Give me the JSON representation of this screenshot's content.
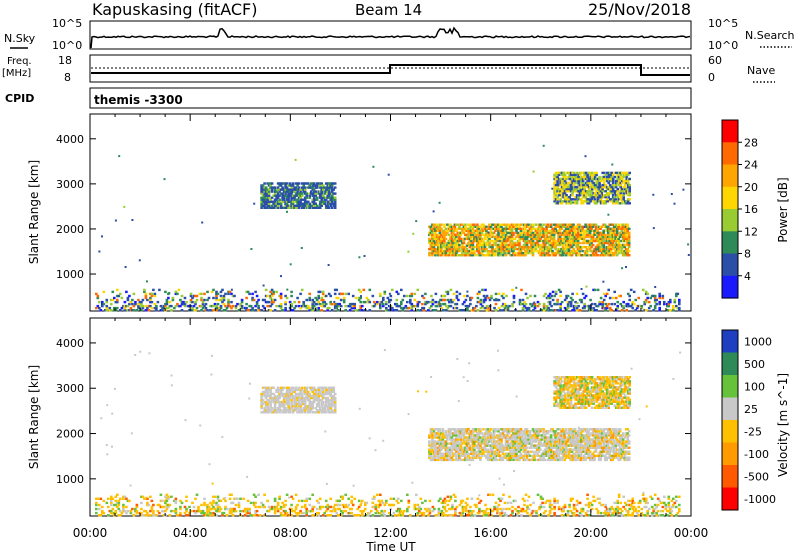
{
  "header": {
    "station": "Kapuskasing (fitACF)",
    "beam": "Beam 14",
    "date": "25/Nov/2018"
  },
  "summary_panels": {
    "nsky_label": "N.Sky",
    "nsky_ticks": [
      "10^5",
      "10^0"
    ],
    "nsearch_label": "N.Search",
    "nsearch_ticks": [
      "10^5",
      "10^0"
    ],
    "freq_label": "Freq.",
    "freq_unit": "[MHz]",
    "freq_ticks": [
      "18",
      "8"
    ],
    "nave_label": "Nave",
    "nave_ticks": [
      "60",
      "0"
    ],
    "cpid_label": "CPID",
    "cpid_value": "themis -3300"
  },
  "chart_data": [
    {
      "type": "heatmap",
      "title": "",
      "xlabel": "Time UT",
      "ylabel": "Slant Range [km]",
      "x_ticks": [
        "00:00",
        "04:00",
        "08:00",
        "12:00",
        "16:00",
        "20:00",
        "00:00"
      ],
      "y_ticks": [
        1000,
        2000,
        3000,
        4000
      ],
      "ylim": [
        180,
        4550
      ],
      "xlim_hours": [
        0,
        24
      ],
      "colorbar": {
        "label": "Power [dB]",
        "ticks": [
          "28",
          "24",
          "20",
          "16",
          "12",
          "8",
          "4"
        ],
        "colors": [
          "#ff0000",
          "#ff6a00",
          "#ffa500",
          "#ffd700",
          "#99cc33",
          "#2e8b57",
          "#2b4fa8",
          "#1a1aff"
        ]
      },
      "regions": [
        {
          "t": [
            6.8,
            9.8
          ],
          "r": [
            2450,
            3000
          ],
          "level": "low-mid"
        },
        {
          "t": [
            13.5,
            21.5
          ],
          "r": [
            1400,
            2100
          ],
          "level": "high"
        },
        {
          "t": [
            18.5,
            21.5
          ],
          "r": [
            2550,
            3250
          ],
          "level": "mid"
        },
        {
          "t": [
            0.2,
            23.5
          ],
          "r": [
            180,
            650
          ],
          "level": "mixed"
        }
      ]
    },
    {
      "type": "heatmap",
      "title": "",
      "xlabel": "Time UT",
      "ylabel": "Slant Range [km]",
      "x_ticks": [
        "00:00",
        "04:00",
        "08:00",
        "12:00",
        "16:00",
        "20:00",
        "00:00"
      ],
      "y_ticks": [
        1000,
        2000,
        3000,
        4000
      ],
      "ylim": [
        180,
        4550
      ],
      "xlim_hours": [
        0,
        24
      ],
      "colorbar": {
        "label": "Velocity [m s^-1]",
        "ticks": [
          "1000",
          "500",
          "100",
          "25",
          "-25",
          "-100",
          "-500",
          "-1000"
        ],
        "colors": [
          "#1e3fbf",
          "#2e8b57",
          "#66c23a",
          "#c8c8c8",
          "#ffc000",
          "#ff9a00",
          "#ff5a00",
          "#ff0000"
        ]
      },
      "regions": [
        {
          "t": [
            6.8,
            9.8
          ],
          "r": [
            2450,
            3000
          ],
          "level": "grey"
        },
        {
          "t": [
            13.5,
            21.5
          ],
          "r": [
            1400,
            2100
          ],
          "level": "grey-orange"
        },
        {
          "t": [
            18.5,
            21.5
          ],
          "r": [
            2550,
            3250
          ],
          "level": "orange-green"
        },
        {
          "t": [
            0.2,
            23.5
          ],
          "r": [
            180,
            650
          ],
          "level": "orange"
        }
      ]
    }
  ],
  "x_axis_title": "Time UT"
}
